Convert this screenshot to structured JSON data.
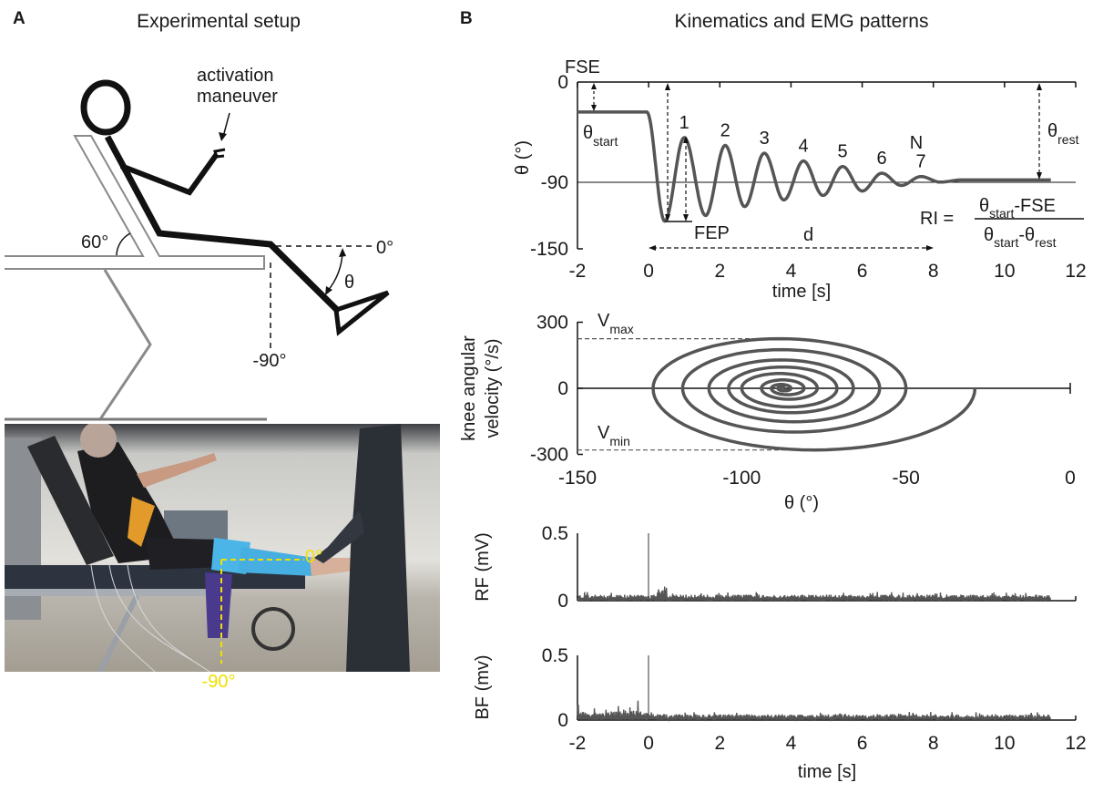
{
  "panel_a": {
    "letter": "A",
    "title": "Experimental setup",
    "labels": {
      "activation_line1": "activation",
      "activation_line2": "maneuver",
      "angle_60": "60°",
      "angle_0": "0°",
      "angle_m90": "-90°",
      "theta": "θ"
    },
    "photo": {
      "label_0": "0°",
      "label_m90": "-90°",
      "guide_color": "#f0e000"
    }
  },
  "panel_b": {
    "letter": "B",
    "title": "Kinematics and EMG patterns"
  },
  "chart_data": [
    {
      "type": "line",
      "ylabel": "θ (°)",
      "xlabel": "time [s]",
      "xlim": [
        -2,
        12
      ],
      "ylim": [
        -150,
        0
      ],
      "xticks": [
        "-2",
        "0",
        "2",
        "4",
        "6",
        "8",
        "10",
        "12"
      ],
      "yticks": [
        "0",
        "-90",
        "-150"
      ],
      "reference_line": -90,
      "series": [
        {
          "extrema_t": [
            -2,
            -0.05,
            0.45,
            1.0,
            1.6,
            2.15,
            2.7,
            3.25,
            3.8,
            4.35,
            4.9,
            5.45,
            6.0,
            6.55,
            7.1,
            7.65,
            8.2,
            8.8,
            11.3
          ],
          "extrema_theta": [
            -27,
            -27,
            -125,
            -50,
            -120,
            -57,
            -112,
            -64,
            -106,
            -71,
            -102,
            -76,
            -98,
            -82,
            -93,
            -85,
            -90,
            -88,
            -88
          ]
        }
      ],
      "annotations": {
        "fse": "FSE",
        "fep": "FEP",
        "d": "d",
        "theta_start": {
          "symbol": "θ",
          "sub": "start"
        },
        "theta_rest": {
          "symbol": "θ",
          "sub": "rest"
        },
        "peak_labels": [
          "1",
          "2",
          "3",
          "4",
          "5",
          "6",
          "7"
        ],
        "n_label": "N",
        "ri": {
          "lhs": "RI =",
          "num_symbol": "θ",
          "num_sub": "start",
          "num_rest": "-FSE",
          "den_symbol": "θ",
          "den_sub": "start",
          "den_mid": "-θ",
          "den_sub2": "rest"
        }
      },
      "values": {
        "theta_start": -27,
        "FSE": -125,
        "theta_rest": -88,
        "d_start": 0,
        "d_end": 8
      }
    },
    {
      "type": "line",
      "ylabel": [
        "knee angular",
        "velocity (°/s)"
      ],
      "xlabel": "θ (°)",
      "xlim": [
        -150,
        0
      ],
      "ylim": [
        -300,
        300
      ],
      "xticks": [
        "-150",
        "-100",
        "-50",
        "0"
      ],
      "yticks": [
        "300",
        "0",
        "-300"
      ],
      "vmax": 225,
      "vmin": -280,
      "vmax_label": {
        "symbol": "V",
        "sub": "max"
      },
      "vmin_label": {
        "symbol": "V",
        "sub": "min"
      },
      "zero_velocity_crossings_theta": [
        -29,
        -127,
        -50,
        -118,
        -58,
        -110,
        -66,
        -104,
        -71,
        -100,
        -77,
        -94,
        -81,
        -91,
        -85,
        -89,
        -87
      ]
    },
    {
      "type": "line",
      "ylabel": "RF (mV)",
      "xlim": [
        -2,
        12
      ],
      "ylim": [
        0,
        0.5
      ],
      "yticks": [
        "0.5",
        "0"
      ],
      "series": [
        {
          "baseline_mV": 0.03,
          "burst_t": [
            0.2,
            0.5
          ],
          "burst_peak_mV": 0.1,
          "end_t": 11.3
        }
      ]
    },
    {
      "type": "line",
      "ylabel": "BF (mv)",
      "xlabel": "time [s]",
      "xlim": [
        -2,
        12
      ],
      "ylim": [
        0,
        0.5
      ],
      "xticks": [
        "-2",
        "0",
        "2",
        "4",
        "6",
        "8",
        "10",
        "12"
      ],
      "yticks": [
        "0.5",
        "0"
      ],
      "series": [
        {
          "baseline_mV": 0.03,
          "pre_activation_peak_mV": 0.15,
          "pre_activation_peak_t": -0.3,
          "end_t": 11.3
        }
      ]
    }
  ]
}
